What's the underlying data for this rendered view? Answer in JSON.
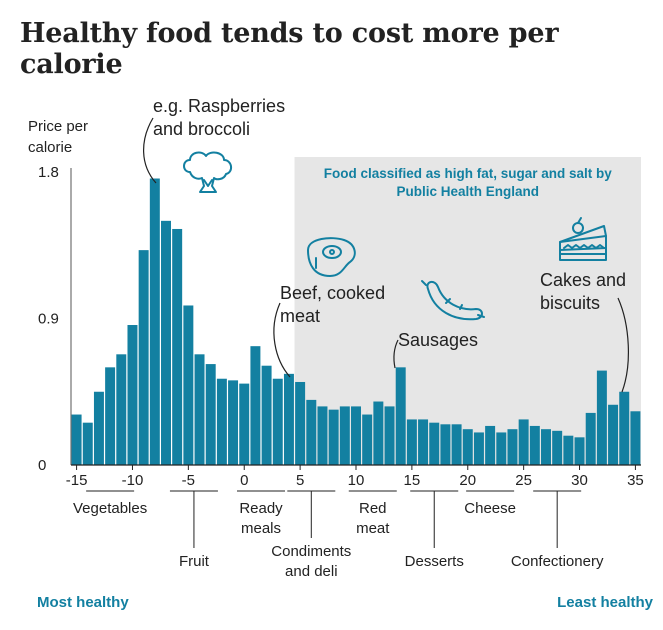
{
  "title": "Healthy food tends to cost more per calorie",
  "colors": {
    "bar": "#1380A1",
    "shade": "#e6e6e6",
    "shade_text": "#1380A1",
    "end_label": "#1380A1"
  },
  "chart_data": {
    "type": "bar",
    "title": "Healthy food tends to cost more per calorie",
    "ylabel": "Price per calorie",
    "xlabel": "",
    "ylim": [
      0,
      1.8
    ],
    "xlim": [
      -15.5,
      35.5
    ],
    "y_ticks": [
      "0",
      "0.9",
      "1.8"
    ],
    "x_ticks": [
      -15,
      -10,
      -5,
      0,
      5,
      10,
      15,
      20,
      25,
      30,
      35
    ],
    "x": [
      -15,
      -14,
      -13,
      -12,
      -11,
      -10,
      -9,
      -8,
      -7,
      -6,
      -5,
      -4,
      -3,
      -2,
      -1,
      0,
      1,
      2,
      3,
      4,
      5,
      6,
      7,
      8,
      9,
      10,
      11,
      12,
      13,
      14,
      15,
      16,
      17,
      18,
      19,
      20,
      21,
      22,
      23,
      24,
      25,
      26,
      27,
      28,
      29,
      30,
      31,
      32,
      33,
      34,
      35
    ],
    "values": [
      0.31,
      0.26,
      0.45,
      0.6,
      0.68,
      0.86,
      1.32,
      1.76,
      1.5,
      1.45,
      0.98,
      0.68,
      0.62,
      0.53,
      0.52,
      0.5,
      0.73,
      0.61,
      0.53,
      0.56,
      0.51,
      0.4,
      0.36,
      0.34,
      0.36,
      0.36,
      0.31,
      0.39,
      0.36,
      0.6,
      0.28,
      0.28,
      0.26,
      0.25,
      0.25,
      0.22,
      0.2,
      0.24,
      0.2,
      0.22,
      0.28,
      0.24,
      0.22,
      0.21,
      0.18,
      0.17,
      0.32,
      0.58,
      0.37,
      0.45,
      0.33
    ],
    "shaded_region": {
      "from_x": 4.5,
      "label_line1": "Food classified as high fat, sugar and salt by",
      "label_line2": "Public Health England"
    },
    "annotations": [
      {
        "x": -7,
        "lines": [
          "e.g. Raspberries",
          "and broccoli"
        ],
        "icon": "broccoli-icon"
      },
      {
        "x": 4,
        "lines": [
          "Beef, cooked",
          "meat"
        ],
        "icon": "steak-icon"
      },
      {
        "x": 14,
        "lines": [
          "Sausages"
        ],
        "icon": "sausage-icon"
      },
      {
        "x": 34,
        "lines": [
          "Cakes and",
          "biscuits"
        ],
        "icon": "cake-icon"
      }
    ],
    "categories": [
      {
        "label": [
          "Vegetables"
        ],
        "x": -12
      },
      {
        "label": [
          "Fruit"
        ],
        "x": -4.5
      },
      {
        "label": [
          "Ready",
          "meals"
        ],
        "x": 1.5
      },
      {
        "label": [
          "Condiments",
          "and deli"
        ],
        "x": 6
      },
      {
        "label": [
          "Red",
          "meat"
        ],
        "x": 11.5
      },
      {
        "label": [
          "Desserts"
        ],
        "x": 17
      },
      {
        "label": [
          "Cheese"
        ],
        "x": 22
      },
      {
        "label": [
          "Confectionery"
        ],
        "x": 28
      }
    ],
    "scale_ends": {
      "left": "Most healthy",
      "right": "Least healthy"
    }
  }
}
